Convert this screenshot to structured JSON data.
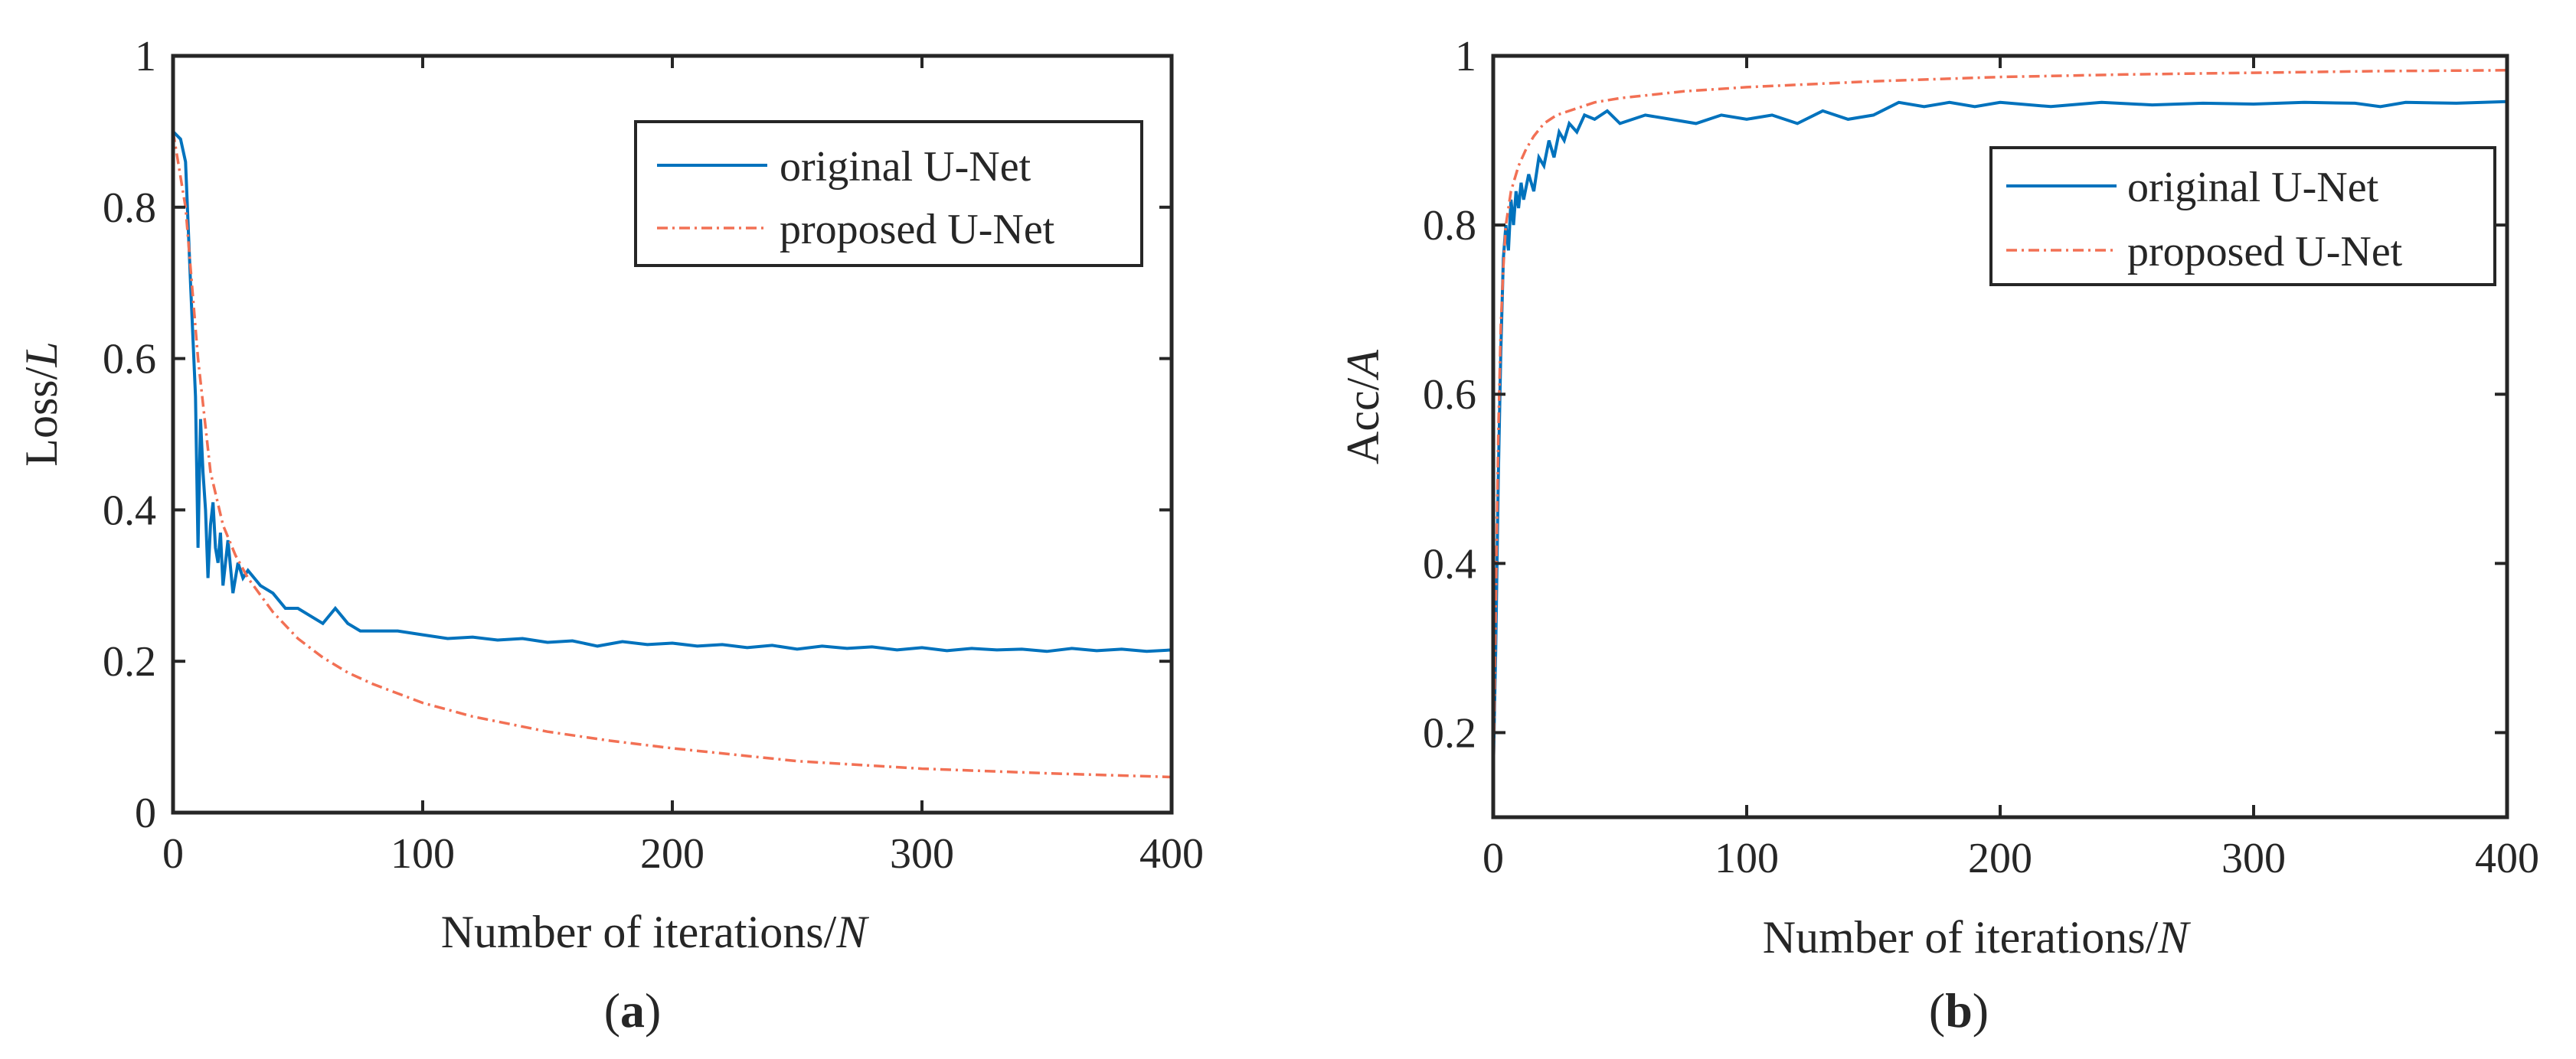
{
  "figure": {
    "caption_a": "a",
    "caption_b": "b",
    "paren_open": "(",
    "paren_close": ")"
  },
  "colors": {
    "original": "#0072BD",
    "proposed": "#F27054",
    "axes": "#262626"
  },
  "chart_data": [
    {
      "id": "a",
      "type": "line",
      "title": "",
      "xlabel": "Number of iterations/",
      "xlabel_italic": "N",
      "ylabel": "Loss/",
      "ylabel_italic": "L",
      "xlim": [
        0,
        400
      ],
      "ylim": [
        0,
        1
      ],
      "xticks": [
        0,
        100,
        200,
        300,
        400
      ],
      "xtick_labels": [
        "0",
        "100",
        "200",
        "300",
        "400"
      ],
      "yticks": [
        0,
        0.2,
        0.4,
        0.6,
        0.8,
        1
      ],
      "ytick_labels": [
        "0",
        "0.2",
        "0.4",
        "0.6",
        "0.8",
        "1"
      ],
      "grid": false,
      "legend": "top-right",
      "series": [
        {
          "name": "original U-Net",
          "style": "solid",
          "x": [
            0,
            3,
            5,
            7,
            9,
            10,
            11,
            12,
            13,
            14,
            15,
            16,
            17,
            18,
            19,
            20,
            22,
            24,
            26,
            28,
            30,
            35,
            40,
            45,
            50,
            55,
            60,
            65,
            70,
            75,
            80,
            90,
            100,
            110,
            120,
            130,
            140,
            150,
            160,
            170,
            180,
            190,
            200,
            210,
            220,
            230,
            240,
            250,
            260,
            270,
            280,
            290,
            300,
            310,
            320,
            330,
            340,
            350,
            360,
            370,
            380,
            390,
            400
          ],
          "values": [
            0.9,
            0.89,
            0.86,
            0.7,
            0.55,
            0.35,
            0.52,
            0.45,
            0.4,
            0.31,
            0.38,
            0.41,
            0.35,
            0.33,
            0.37,
            0.3,
            0.36,
            0.29,
            0.33,
            0.31,
            0.32,
            0.3,
            0.29,
            0.27,
            0.27,
            0.26,
            0.25,
            0.27,
            0.25,
            0.24,
            0.24,
            0.24,
            0.235,
            0.23,
            0.232,
            0.228,
            0.23,
            0.225,
            0.227,
            0.22,
            0.226,
            0.222,
            0.224,
            0.22,
            0.222,
            0.218,
            0.221,
            0.216,
            0.22,
            0.217,
            0.219,
            0.215,
            0.218,
            0.214,
            0.217,
            0.215,
            0.216,
            0.213,
            0.217,
            0.214,
            0.216,
            0.213,
            0.215
          ]
        },
        {
          "name": "proposed U-Net",
          "style": "dashdot",
          "x": [
            0,
            5,
            10,
            15,
            20,
            25,
            30,
            40,
            50,
            60,
            70,
            80,
            100,
            120,
            150,
            175,
            200,
            250,
            300,
            350,
            400
          ],
          "values": [
            0.9,
            0.8,
            0.6,
            0.45,
            0.38,
            0.34,
            0.31,
            0.265,
            0.23,
            0.205,
            0.185,
            0.17,
            0.145,
            0.127,
            0.107,
            0.095,
            0.085,
            0.068,
            0.058,
            0.052,
            0.047
          ]
        }
      ]
    },
    {
      "id": "b",
      "type": "line",
      "title": "",
      "xlabel": "Number of iterations/",
      "xlabel_italic": "N",
      "ylabel": "Acc/",
      "ylabel_italic": "A",
      "xlim": [
        0,
        400
      ],
      "ylim": [
        0.1,
        1
      ],
      "xticks": [
        0,
        100,
        200,
        300,
        400
      ],
      "xtick_labels": [
        "0",
        "100",
        "200",
        "300",
        "400"
      ],
      "yticks": [
        0.2,
        0.4,
        0.6,
        0.8,
        1
      ],
      "ytick_labels": [
        "0.2",
        "0.4",
        "0.6",
        "0.8",
        "1"
      ],
      "grid": false,
      "legend": "top-right",
      "series": [
        {
          "name": "original U-Net",
          "style": "solid",
          "x": [
            0,
            1,
            2,
            3,
            4,
            5,
            6,
            7,
            8,
            9,
            10,
            11,
            12,
            14,
            16,
            18,
            20,
            22,
            24,
            26,
            28,
            30,
            33,
            36,
            40,
            45,
            50,
            60,
            70,
            80,
            90,
            100,
            110,
            120,
            130,
            140,
            150,
            160,
            170,
            180,
            190,
            200,
            220,
            240,
            260,
            280,
            300,
            320,
            340,
            350,
            360,
            380,
            400
          ],
          "values": [
            0.15,
            0.3,
            0.5,
            0.65,
            0.76,
            0.8,
            0.77,
            0.83,
            0.8,
            0.84,
            0.82,
            0.85,
            0.83,
            0.86,
            0.84,
            0.88,
            0.87,
            0.9,
            0.88,
            0.91,
            0.9,
            0.92,
            0.91,
            0.93,
            0.925,
            0.935,
            0.92,
            0.93,
            0.925,
            0.92,
            0.93,
            0.925,
            0.93,
            0.92,
            0.935,
            0.925,
            0.93,
            0.945,
            0.94,
            0.945,
            0.94,
            0.945,
            0.94,
            0.945,
            0.942,
            0.944,
            0.943,
            0.945,
            0.944,
            0.94,
            0.945,
            0.944,
            0.946
          ]
        },
        {
          "name": "proposed U-Net",
          "style": "dashdot",
          "x": [
            0,
            1,
            2,
            3,
            4,
            5,
            7,
            10,
            13,
            16,
            20,
            25,
            30,
            40,
            50,
            75,
            100,
            150,
            200,
            250,
            300,
            350,
            400
          ],
          "values": [
            0.12,
            0.35,
            0.55,
            0.68,
            0.75,
            0.8,
            0.84,
            0.87,
            0.89,
            0.905,
            0.92,
            0.93,
            0.935,
            0.945,
            0.95,
            0.958,
            0.963,
            0.97,
            0.975,
            0.978,
            0.98,
            0.982,
            0.983
          ]
        }
      ]
    }
  ]
}
